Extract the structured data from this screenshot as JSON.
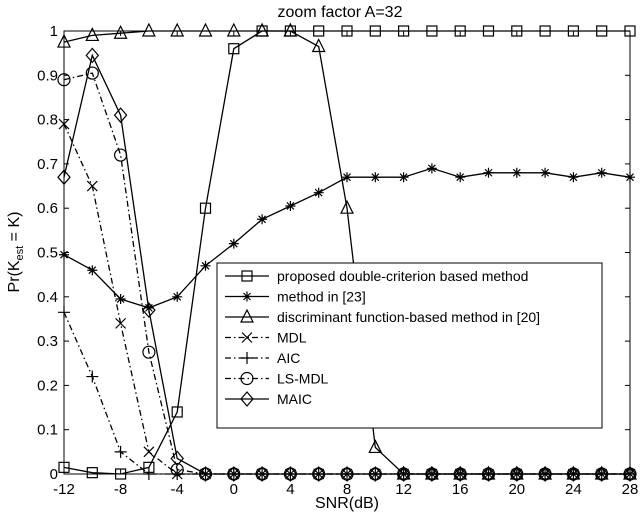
{
  "chart_data": {
    "type": "line",
    "title": "zoom factor A=32",
    "xlabel": "SNR(dB)",
    "ylabel": {
      "prefix": "Pr(K",
      "sub": "est",
      "suffix": " = K)"
    },
    "xlim": [
      -12,
      28
    ],
    "ylim": [
      0,
      1
    ],
    "xticks": [
      -12,
      -8,
      -4,
      0,
      4,
      8,
      12,
      16,
      20,
      24,
      28
    ],
    "yticks": [
      0,
      0.1,
      0.2,
      0.3,
      0.4,
      0.5,
      0.6,
      0.7,
      0.8,
      0.9,
      1
    ],
    "grid": false,
    "legend_position": "bottom-center",
    "x": [
      -12,
      -10,
      -8,
      -6,
      -4,
      -2,
      0,
      2,
      4,
      6,
      8,
      10,
      12,
      14,
      16,
      18,
      20,
      22,
      24,
      26,
      28
    ],
    "series": [
      {
        "name": "proposed double-criterion based method",
        "marker": "square",
        "style": "solid",
        "values": [
          0.015,
          0.003,
          0.0,
          0.015,
          0.14,
          0.6,
          0.96,
          1,
          1,
          1,
          1,
          1,
          1,
          1,
          1,
          1,
          1,
          1,
          1,
          1,
          1
        ]
      },
      {
        "name": "method in [23]",
        "marker": "asterisk",
        "style": "solid",
        "values": [
          0.495,
          0.46,
          0.395,
          0.375,
          0.4,
          0.47,
          0.52,
          0.575,
          0.605,
          0.635,
          0.67,
          0.67,
          0.67,
          0.69,
          0.67,
          0.68,
          0.68,
          0.68,
          0.67,
          0.68,
          0.67
        ]
      },
      {
        "name": "discriminant function-based method in [20]",
        "marker": "triangle",
        "style": "solid",
        "values": [
          0.975,
          0.99,
          0.995,
          1,
          1,
          1,
          1,
          1,
          1,
          0.965,
          0.6,
          0.06,
          0,
          0,
          0,
          0,
          0,
          0,
          0,
          0,
          0
        ]
      },
      {
        "name": "MDL",
        "marker": "x",
        "style": "dashdot",
        "values": [
          0.79,
          0.65,
          0.34,
          0.05,
          0,
          0,
          0,
          0,
          0,
          0,
          0,
          0,
          0,
          0,
          0,
          0,
          0,
          0,
          0,
          0,
          0
        ]
      },
      {
        "name": "AIC",
        "marker": "plus",
        "style": "dashdot",
        "values": [
          0.365,
          0.22,
          0.05,
          0,
          0,
          0,
          0,
          0,
          0,
          0,
          0,
          0,
          0,
          0,
          0,
          0,
          0,
          0,
          0,
          0,
          0
        ]
      },
      {
        "name": "LS-MDL",
        "marker": "circle",
        "style": "dashdot",
        "values": [
          0.89,
          0.905,
          0.72,
          0.275,
          0.01,
          0,
          0,
          0,
          0,
          0,
          0,
          0,
          0,
          0,
          0,
          0,
          0,
          0,
          0,
          0,
          0
        ]
      },
      {
        "name": "MAIC",
        "marker": "diamond",
        "style": "solid",
        "values": [
          0.67,
          0.945,
          0.81,
          0.37,
          0.035,
          0,
          0,
          0,
          0,
          0,
          0,
          0,
          0,
          0,
          0,
          0,
          0,
          0,
          0,
          0,
          0
        ]
      }
    ]
  }
}
